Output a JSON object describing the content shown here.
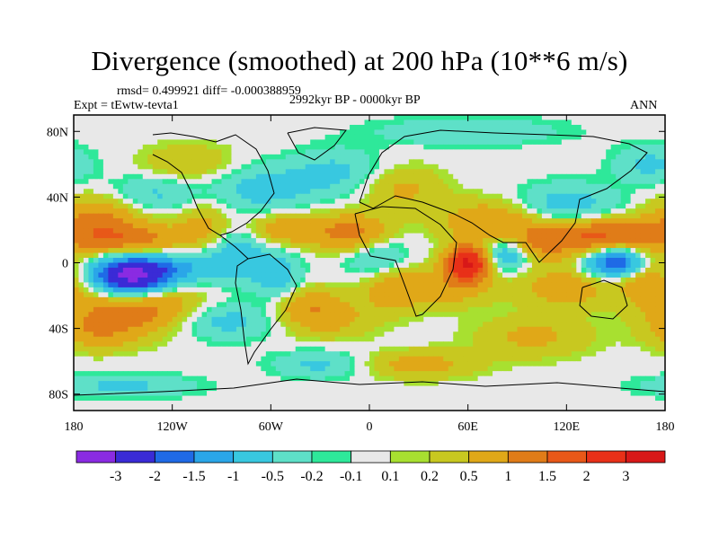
{
  "chart_data": {
    "type": "heatmap",
    "title": "Divergence (smoothed) at 200 hPa (10**6 m/s)",
    "stats_text": "rmsd= 0.499921 diff= -0.000388959",
    "experiment_label": "Expt = tEwtw-tevta1",
    "period_label": "2992kyr BP - 0000kyr BP",
    "season_label": "ANN",
    "x_range": [
      -180,
      180
    ],
    "y_range": [
      -90,
      90
    ],
    "x_ticks": [
      {
        "value": -180,
        "label": "180"
      },
      {
        "value": -120,
        "label": "120W"
      },
      {
        "value": -60,
        "label": "60W"
      },
      {
        "value": 0,
        "label": "0"
      },
      {
        "value": 60,
        "label": "60E"
      },
      {
        "value": 120,
        "label": "120E"
      },
      {
        "value": 180,
        "label": "180"
      }
    ],
    "y_ticks": [
      {
        "value": 80,
        "label": "80N"
      },
      {
        "value": 40,
        "label": "40N"
      },
      {
        "value": 0,
        "label": "0"
      },
      {
        "value": -40,
        "label": "40S"
      },
      {
        "value": -80,
        "label": "80S"
      }
    ],
    "levels": [
      -3,
      -2,
      -1.5,
      -1,
      -0.5,
      -0.2,
      -0.1,
      0.1,
      0.2,
      0.5,
      1,
      1.5,
      2,
      3
    ],
    "colors": [
      "#8a2be2",
      "#3a2bd6",
      "#1f6ae6",
      "#2aa6e8",
      "#38c8e0",
      "#5ee0c8",
      "#2ee89a",
      "#e8e8e8",
      "#a8e030",
      "#c8c820",
      "#e0a818",
      "#e07c18",
      "#e85818",
      "#e83018",
      "#d81818"
    ],
    "features": [
      {
        "lon": -145,
        "lat": -8,
        "amp": -3.4,
        "sx": 16,
        "sy": 8
      },
      {
        "lon": -115,
        "lat": -3,
        "amp": -0.9,
        "sx": 18,
        "sy": 7
      },
      {
        "lon": -150,
        "lat": 14,
        "amp": 1.3,
        "sx": 28,
        "sy": 7
      },
      {
        "lon": -165,
        "lat": 28,
        "amp": 1.0,
        "sx": 18,
        "sy": 9
      },
      {
        "lon": -140,
        "lat": -28,
        "amp": 1.3,
        "sx": 28,
        "sy": 10
      },
      {
        "lon": -165,
        "lat": -42,
        "amp": 0.8,
        "sx": 18,
        "sy": 8
      },
      {
        "lon": -130,
        "lat": 42,
        "amp": -0.6,
        "sx": 20,
        "sy": 8
      },
      {
        "lon": -110,
        "lat": 60,
        "amp": 0.5,
        "sx": 20,
        "sy": 9
      },
      {
        "lon": -100,
        "lat": 25,
        "amp": 0.6,
        "sx": 12,
        "sy": 10
      },
      {
        "lon": -90,
        "lat": -35,
        "amp": -0.8,
        "sx": 22,
        "sy": 8
      },
      {
        "lon": -80,
        "lat": 5,
        "amp": -0.9,
        "sx": 12,
        "sy": 12
      },
      {
        "lon": -55,
        "lat": -10,
        "amp": -0.8,
        "sx": 10,
        "sy": 12
      },
      {
        "lon": -65,
        "lat": 45,
        "amp": -0.7,
        "sx": 22,
        "sy": 10
      },
      {
        "lon": -50,
        "lat": 20,
        "amp": 0.9,
        "sx": 18,
        "sy": 7
      },
      {
        "lon": -40,
        "lat": -25,
        "amp": 0.8,
        "sx": 16,
        "sy": 8
      },
      {
        "lon": -10,
        "lat": 18,
        "amp": 1.2,
        "sx": 15,
        "sy": 8
      },
      {
        "lon": 5,
        "lat": 2,
        "amp": -0.7,
        "sx": 14,
        "sy": 9
      },
      {
        "lon": 15,
        "lat": -15,
        "amp": 0.9,
        "sx": 14,
        "sy": 10
      },
      {
        "lon": -25,
        "lat": -35,
        "amp": 0.6,
        "sx": 20,
        "sy": 8
      },
      {
        "lon": -20,
        "lat": 55,
        "amp": -0.6,
        "sx": 20,
        "sy": 10
      },
      {
        "lon": 20,
        "lat": 45,
        "amp": 0.6,
        "sx": 18,
        "sy": 10
      },
      {
        "lon": 60,
        "lat": 0,
        "amp": 3.1,
        "sx": 9,
        "sy": 7
      },
      {
        "lon": 50,
        "lat": -15,
        "amp": 0.8,
        "sx": 18,
        "sy": 8
      },
      {
        "lon": 75,
        "lat": 25,
        "amp": 1.0,
        "sx": 22,
        "sy": 9
      },
      {
        "lon": 85,
        "lat": 5,
        "amp": -1.2,
        "sx": 12,
        "sy": 7
      },
      {
        "lon": 100,
        "lat": 10,
        "amp": 1.0,
        "sx": 12,
        "sy": 8
      },
      {
        "lon": 120,
        "lat": 35,
        "amp": -0.8,
        "sx": 22,
        "sy": 9
      },
      {
        "lon": 130,
        "lat": 15,
        "amp": 1.3,
        "sx": 18,
        "sy": 8
      },
      {
        "lon": 150,
        "lat": 0,
        "amp": -2.2,
        "sx": 13,
        "sy": 6
      },
      {
        "lon": 155,
        "lat": 20,
        "amp": 0.8,
        "sx": 18,
        "sy": 6
      },
      {
        "lon": 120,
        "lat": -15,
        "amp": 0.8,
        "sx": 20,
        "sy": 9
      },
      {
        "lon": 170,
        "lat": -10,
        "amp": 0.9,
        "sx": 12,
        "sy": 12
      },
      {
        "lon": 100,
        "lat": -45,
        "amp": 0.6,
        "sx": 25,
        "sy": 9
      },
      {
        "lon": 30,
        "lat": -62,
        "amp": 0.7,
        "sx": 25,
        "sy": 6
      },
      {
        "lon": -30,
        "lat": -62,
        "amp": -0.6,
        "sx": 20,
        "sy": 6
      },
      {
        "lon": -150,
        "lat": -75,
        "amp": -0.6,
        "sx": 30,
        "sy": 5
      },
      {
        "lon": 60,
        "lat": 80,
        "amp": -0.5,
        "sx": 40,
        "sy": 6
      },
      {
        "lon": 170,
        "lat": 60,
        "amp": -0.6,
        "sx": 15,
        "sy": 8
      }
    ],
    "colorbar_labels": [
      "-3",
      "-2",
      "-1.5",
      "-1",
      "-0.5",
      "-0.2",
      "-0.1",
      "0.1",
      "0.2",
      "0.5",
      "1",
      "1.5",
      "2",
      "3"
    ]
  }
}
